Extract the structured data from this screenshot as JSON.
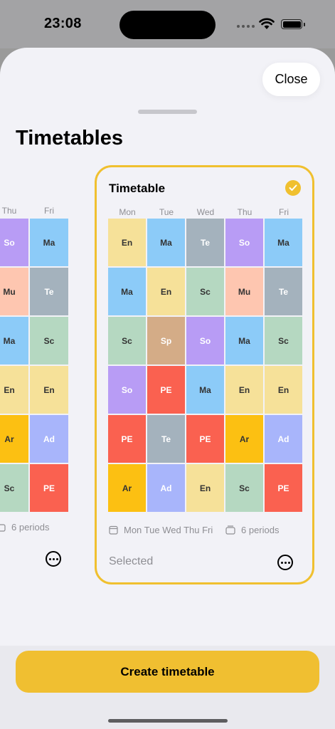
{
  "status": {
    "time": "23:08"
  },
  "header": {
    "close_label": "Close",
    "title": "Timetables"
  },
  "colors": {
    "En": "#f6e199",
    "Ma": "#8ccbf8",
    "Te": "#a4b2bd",
    "So": "#b89cf5",
    "Sc": "#b5d8c1",
    "Mu": "#fec6b0",
    "Sp": "#d4ac87",
    "PE": "#fa6150",
    "Ar": "#fcc012",
    "Ad": "#a8b5fb",
    "accent": "#f0c02f"
  },
  "left_card": {
    "days": [
      "Thu",
      "Fri"
    ],
    "grid": [
      [
        "So",
        "Ma"
      ],
      [
        "Mu",
        "Te"
      ],
      [
        "Ma",
        "Sc"
      ],
      [
        "En",
        "En"
      ],
      [
        "Ar",
        "Ad"
      ],
      [
        "Sc",
        "PE"
      ]
    ],
    "periods_text": "6 periods"
  },
  "selected_card": {
    "title": "Timetable",
    "days": [
      "Mon",
      "Tue",
      "Wed",
      "Thu",
      "Fri"
    ],
    "grid": [
      [
        "En",
        "Ma",
        "Te",
        "So",
        "Ma"
      ],
      [
        "Ma",
        "En",
        "Sc",
        "Mu",
        "Te"
      ],
      [
        "Sc",
        "Sp",
        "So",
        "Ma",
        "Sc"
      ],
      [
        "So",
        "PE",
        "Ma",
        "En",
        "En"
      ],
      [
        "PE",
        "Te",
        "PE",
        "Ar",
        "Ad"
      ],
      [
        "Ar",
        "Ad",
        "En",
        "Sc",
        "PE"
      ]
    ],
    "days_text": "Mon Tue Wed Thu Fri",
    "periods_text": "6 periods",
    "status_text": "Selected"
  },
  "footer": {
    "create_label": "Create timetable"
  }
}
